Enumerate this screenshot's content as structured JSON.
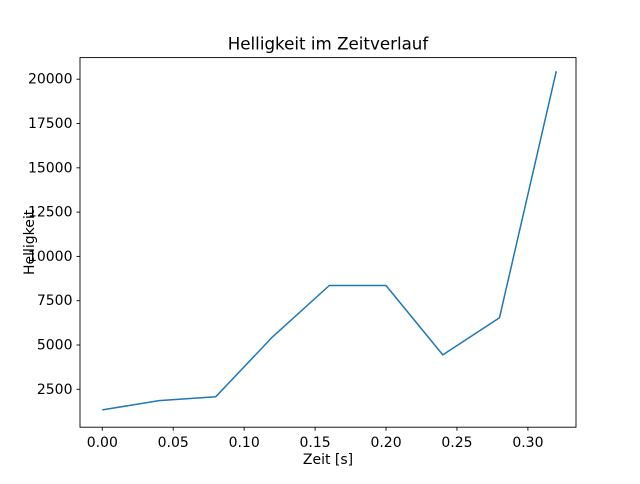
{
  "figure": {
    "background": "#ffffff",
    "frame_color": "#000000",
    "text_color": "#000000"
  },
  "chart_data": {
    "type": "line",
    "title": "Helligkeit im Zeitverlauf",
    "xlabel": "Zeit [s]",
    "ylabel": "Helligkeit",
    "x": [
      0.0,
      0.04,
      0.08,
      0.12,
      0.16,
      0.2,
      0.24,
      0.28,
      0.32
    ],
    "y": [
      1340,
      1860,
      2080,
      5460,
      8360,
      8360,
      4440,
      6540,
      20450
    ],
    "x_tick_labels": [
      "0.00",
      "0.05",
      "0.10",
      "0.15",
      "0.20",
      "0.25",
      "0.30"
    ],
    "y_tick_values": [
      2500,
      5000,
      7500,
      10000,
      12500,
      15000,
      17500,
      20000
    ],
    "xlim": [
      -0.0157,
      0.3339
    ],
    "ylim": [
      361,
      21220
    ],
    "line_color": "#1f77b4",
    "line_width": 1.5,
    "grid": false,
    "legend": null,
    "marker": "none"
  }
}
